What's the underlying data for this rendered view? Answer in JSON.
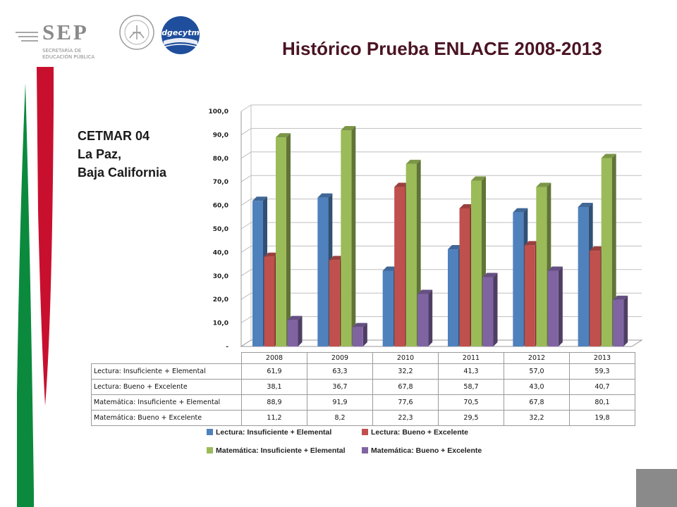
{
  "header": {
    "sep_logo_text": "SEP",
    "sep_logo_subtext": [
      "SECRETARÍA DE",
      "EDUCACIÓN PÚBLICA"
    ],
    "seal_text": "ESTADOS UNIDOS MEXICANOS",
    "dgecytm_logo_text": "dgecytm"
  },
  "title": "Histórico Prueba ENLACE 2008-2013",
  "school": {
    "line1": "CETMAR 04",
    "line2": "La Paz,",
    "line3": "Baja California"
  },
  "colors": {
    "stripe_green": "#0b8a3e",
    "stripe_red": "#c8102e",
    "title": "#4a1424",
    "corner_box": "#8a8a8a"
  },
  "chart_data": {
    "type": "bar",
    "categories": [
      "2008",
      "2009",
      "2010",
      "2011",
      "2012",
      "2013"
    ],
    "series": [
      {
        "name": "Lectura: Insuficiente + Elemental",
        "color": "#4f81bd",
        "values": [
          61.9,
          63.3,
          32.2,
          41.3,
          57.0,
          59.3
        ],
        "labels": [
          "61,9",
          "63,3",
          "32,2",
          "41,3",
          "57,0",
          "59,3"
        ]
      },
      {
        "name": "Lectura: Bueno + Excelente",
        "color": "#c0504d",
        "values": [
          38.1,
          36.7,
          67.8,
          58.7,
          43.0,
          40.7
        ],
        "labels": [
          "38,1",
          "36,7",
          "67,8",
          "58,7",
          "43,0",
          "40,7"
        ]
      },
      {
        "name": "Matemática: Insuficiente + Elemental",
        "color": "#9bbb59",
        "values": [
          88.9,
          91.9,
          77.6,
          70.5,
          67.8,
          80.1
        ],
        "labels": [
          "88,9",
          "91,9",
          "77,6",
          "70,5",
          "67,8",
          "80,1"
        ]
      },
      {
        "name": "Matemática: Bueno + Excelente",
        "color": "#8064a2",
        "values": [
          11.2,
          8.2,
          22.3,
          29.5,
          32.2,
          19.8
        ],
        "labels": [
          "11,2",
          "8,2",
          "22,3",
          "29,5",
          "32,2",
          "19,8"
        ]
      }
    ],
    "ylim": [
      0,
      100
    ],
    "yticks": [
      0,
      10,
      20,
      30,
      40,
      50,
      60,
      70,
      80,
      90,
      100
    ],
    "ytick_labels": [
      "-",
      "10,0",
      "20,0",
      "30,0",
      "40,0",
      "50,0",
      "60,0",
      "70,0",
      "80,0",
      "90,0",
      "100,0"
    ],
    "legend_position": "bottom",
    "data_table": true,
    "style": "3d-clustered-column"
  }
}
